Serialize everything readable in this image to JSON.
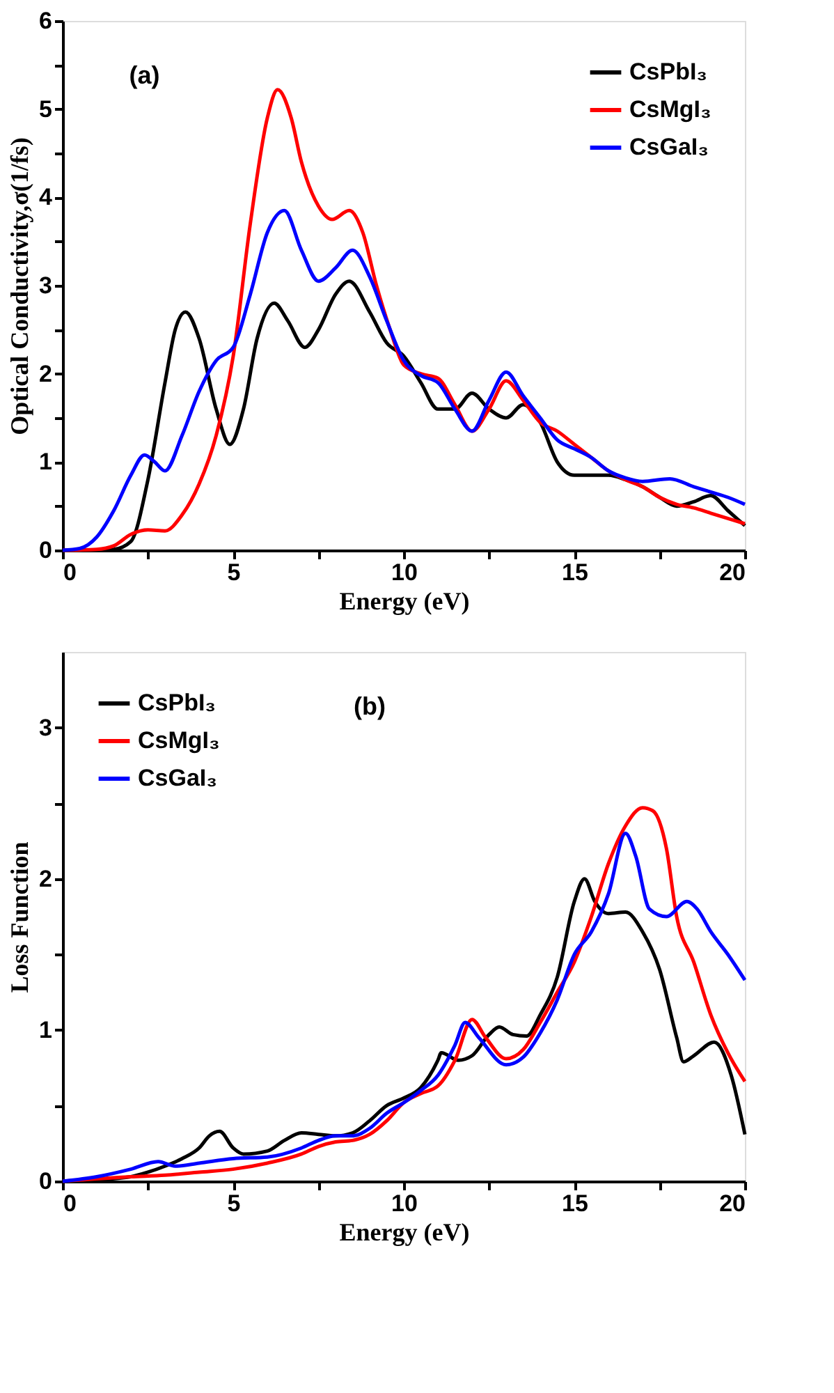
{
  "chart_data": [
    {
      "type": "line",
      "xlabel": "Energy (eV)",
      "ylabel": "Optical Conductivity,σ(1/fs)",
      "annotations": [
        "(a)"
      ],
      "legend": "top right",
      "xlim": [
        0,
        20
      ],
      "ylim": [
        0,
        6
      ],
      "xticks": [
        0,
        {
          "value": 2.5,
          "label": null
        },
        5,
        {
          "value": 7.5,
          "label": null
        },
        10,
        {
          "value": 12.5,
          "label": null
        },
        15,
        {
          "value": 17.5,
          "label": null
        },
        20
      ],
      "yticks": [
        0,
        {
          "value": 0.5,
          "label": null
        },
        1,
        {
          "value": 1.5,
          "label": null
        },
        2,
        {
          "value": 2.5,
          "label": null
        },
        3,
        {
          "value": 3.5,
          "label": null
        },
        4,
        {
          "value": 4.5,
          "label": null
        },
        5,
        {
          "value": 5.5,
          "label": null
        },
        6
      ],
      "series": [
        {
          "name": "CsPbI₃",
          "color": "#000000",
          "x": [
            0,
            1,
            1.5,
            2,
            2.5,
            3,
            3.3,
            3.6,
            4,
            4.5,
            4.9,
            5.3,
            5.7,
            6.2,
            6.6,
            7.1,
            7.5,
            8,
            8.4,
            9,
            9.5,
            10,
            10.5,
            11,
            11.5,
            12,
            12.5,
            13,
            13.5,
            14,
            14.5,
            15,
            15.5,
            16,
            16.5,
            17,
            17.5,
            18,
            18.5,
            19,
            19.5,
            20
          ],
          "values": [
            0,
            0,
            0.01,
            0.1,
            0.8,
            1.9,
            2.5,
            2.7,
            2.4,
            1.6,
            1.2,
            1.6,
            2.4,
            2.8,
            2.6,
            2.3,
            2.5,
            2.9,
            3.05,
            2.7,
            2.35,
            2.2,
            1.9,
            1.6,
            1.6,
            1.78,
            1.6,
            1.5,
            1.65,
            1.45,
            1.0,
            0.85,
            0.85,
            0.85,
            0.8,
            0.72,
            0.6,
            0.5,
            0.55,
            0.62,
            0.45,
            0.28
          ]
        },
        {
          "name": "CsMgI₃",
          "color": "#ff0000",
          "x": [
            0,
            1,
            1.5,
            2,
            2.5,
            3,
            3.5,
            4,
            4.5,
            5,
            5.5,
            6,
            6.3,
            6.7,
            7,
            7.5,
            7.9,
            8.4,
            8.8,
            9.2,
            9.6,
            10,
            10.5,
            11,
            11.5,
            12,
            12.5,
            13,
            13.5,
            14,
            14.5,
            15,
            15.5,
            16,
            16.5,
            17,
            17.5,
            18,
            18.5,
            19,
            19.5,
            20
          ],
          "values": [
            0,
            0.01,
            0.05,
            0.18,
            0.23,
            0.22,
            0.4,
            0.75,
            1.3,
            2.2,
            3.7,
            4.9,
            5.22,
            4.9,
            4.4,
            3.9,
            3.75,
            3.85,
            3.6,
            3.0,
            2.5,
            2.1,
            2.0,
            1.95,
            1.65,
            1.35,
            1.6,
            1.92,
            1.7,
            1.45,
            1.35,
            1.2,
            1.05,
            0.9,
            0.8,
            0.72,
            0.6,
            0.52,
            0.48,
            0.42,
            0.36,
            0.3
          ]
        },
        {
          "name": "CsGaI₃",
          "color": "#0000ff",
          "x": [
            0,
            0.5,
            1,
            1.5,
            2,
            2.4,
            2.7,
            3,
            3.5,
            4,
            4.5,
            5,
            5.5,
            6,
            6.5,
            7,
            7.5,
            8,
            8.5,
            9,
            9.5,
            10,
            10.5,
            11,
            11.5,
            12,
            12.5,
            13,
            13.5,
            14,
            14.5,
            15,
            15.5,
            16,
            16.5,
            17,
            17.8,
            18.5,
            19,
            19.5,
            20
          ],
          "values": [
            0,
            0.02,
            0.15,
            0.45,
            0.85,
            1.08,
            1.0,
            0.9,
            1.3,
            1.8,
            2.15,
            2.3,
            2.9,
            3.6,
            3.85,
            3.4,
            3.05,
            3.2,
            3.4,
            3.1,
            2.6,
            2.15,
            1.98,
            1.9,
            1.6,
            1.35,
            1.7,
            2.02,
            1.75,
            1.5,
            1.25,
            1.15,
            1.05,
            0.9,
            0.82,
            0.78,
            0.81,
            0.72,
            0.66,
            0.6,
            0.52
          ]
        }
      ]
    },
    {
      "type": "line",
      "xlabel": "Energy (eV)",
      "ylabel": "Loss Function",
      "annotations": [
        "(b)"
      ],
      "legend": "top left",
      "xlim": [
        0,
        20
      ],
      "ylim": [
        0,
        3.5
      ],
      "xticks": [
        0,
        {
          "value": 2.5,
          "label": null
        },
        5,
        {
          "value": 7.5,
          "label": null
        },
        10,
        {
          "value": 12.5,
          "label": null
        },
        15,
        {
          "value": 17.5,
          "label": null
        },
        20
      ],
      "yticks": [
        0,
        {
          "value": 0.5,
          "label": null
        },
        1,
        {
          "value": 1.5,
          "label": null
        },
        2,
        {
          "value": 2.5,
          "label": null
        },
        3
      ],
      "series": [
        {
          "name": "CsPbI₃",
          "color": "#000000",
          "x": [
            0,
            1,
            2,
            2.5,
            3,
            3.5,
            4,
            4.3,
            4.6,
            5,
            5.3,
            6,
            6.5,
            7,
            7.5,
            8,
            8.5,
            9,
            9.5,
            10,
            10.5,
            11,
            11.1,
            11.6,
            12,
            12.5,
            12.8,
            13.2,
            13.6,
            14,
            14.5,
            15,
            15.3,
            15.6,
            16,
            16.5,
            17,
            17.5,
            18,
            18.2,
            18.5,
            19.1,
            19.6,
            20
          ],
          "values": [
            0,
            0.01,
            0.03,
            0.06,
            0.1,
            0.15,
            0.22,
            0.3,
            0.33,
            0.22,
            0.18,
            0.2,
            0.27,
            0.32,
            0.31,
            0.3,
            0.32,
            0.4,
            0.5,
            0.55,
            0.62,
            0.8,
            0.85,
            0.8,
            0.83,
            0.97,
            1.02,
            0.97,
            0.96,
            1.1,
            1.35,
            1.85,
            2.0,
            1.85,
            1.77,
            1.78,
            1.65,
            1.4,
            0.95,
            0.79,
            0.83,
            0.92,
            0.7,
            0.31
          ]
        },
        {
          "name": "CsMgI₃",
          "color": "#ff0000",
          "x": [
            0,
            2,
            3,
            4,
            5,
            6,
            7,
            7.5,
            8,
            8.5,
            9,
            9.5,
            10,
            10.5,
            11,
            11.5,
            12,
            12.4,
            13,
            13.5,
            14,
            14.5,
            15,
            15.5,
            16,
            16.5,
            17,
            17.3,
            17.7,
            18,
            18.5,
            19,
            19.5,
            20
          ],
          "values": [
            0,
            0.03,
            0.04,
            0.06,
            0.08,
            0.12,
            0.18,
            0.23,
            0.26,
            0.27,
            0.31,
            0.4,
            0.52,
            0.58,
            0.63,
            0.8,
            1.07,
            0.95,
            0.81,
            0.87,
            1.05,
            1.25,
            1.45,
            1.75,
            2.1,
            2.35,
            2.47,
            2.45,
            2.2,
            1.75,
            1.45,
            1.1,
            0.85,
            0.66
          ]
        },
        {
          "name": "CsGaI₃",
          "color": "#0000ff",
          "x": [
            0,
            1,
            2,
            2.8,
            3.3,
            4,
            5,
            6,
            7,
            7.5,
            8,
            8.5,
            9,
            9.5,
            10,
            10.5,
            11,
            11.5,
            11.8,
            12.2,
            13,
            13.5,
            14,
            14.5,
            15,
            15.5,
            16,
            16.5,
            16.8,
            17.2,
            17.7,
            18.3,
            18.6,
            19,
            19.5,
            20
          ],
          "values": [
            0,
            0.03,
            0.08,
            0.13,
            0.1,
            0.12,
            0.15,
            0.16,
            0.22,
            0.27,
            0.3,
            0.3,
            0.35,
            0.45,
            0.52,
            0.6,
            0.7,
            0.9,
            1.05,
            0.95,
            0.77,
            0.82,
            0.98,
            1.2,
            1.5,
            1.65,
            1.9,
            2.3,
            2.15,
            1.8,
            1.75,
            1.85,
            1.8,
            1.65,
            1.5,
            1.33
          ]
        }
      ]
    }
  ]
}
